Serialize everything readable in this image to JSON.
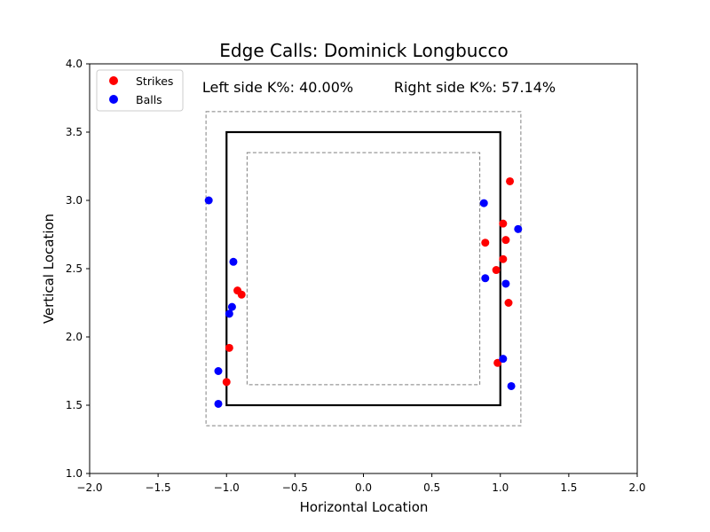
{
  "chart_data": {
    "type": "scatter",
    "title": "Edge Calls: Dominick Longbucco",
    "xlabel": "Horizontal Location",
    "ylabel": "Vertical Location",
    "xlim": [
      -2.0,
      2.0
    ],
    "ylim": [
      1.0,
      4.0
    ],
    "xticks": [
      -2.0,
      -1.5,
      -1.0,
      -0.5,
      0.0,
      0.5,
      1.0,
      1.5,
      2.0
    ],
    "xtick_labels": [
      "−2.0",
      "−1.5",
      "−1.0",
      "−0.5",
      "0.0",
      "0.5",
      "1.0",
      "1.5",
      "2.0"
    ],
    "yticks": [
      1.0,
      1.5,
      2.0,
      2.5,
      3.0,
      3.5,
      4.0
    ],
    "ytick_labels": [
      "1.0",
      "1.5",
      "2.0",
      "2.5",
      "3.0",
      "3.5",
      "4.0"
    ],
    "grid": false,
    "legend_position": "top-left",
    "annotations": {
      "left": "Left side K%: 40.00%",
      "right": "Right side K%: 57.14%"
    },
    "zones": {
      "strike_zone": {
        "x": [
          -1.0,
          1.0
        ],
        "y": [
          1.5,
          3.5
        ]
      },
      "outer_edge": {
        "x": [
          -1.15,
          1.15
        ],
        "y": [
          1.35,
          3.65
        ]
      },
      "inner_edge": {
        "x": [
          -0.85,
          0.85
        ],
        "y": [
          1.65,
          3.35
        ]
      }
    },
    "series": [
      {
        "name": "Strikes",
        "color": "#ff0000",
        "points": [
          {
            "x": -0.92,
            "y": 2.34
          },
          {
            "x": -0.89,
            "y": 2.31
          },
          {
            "x": -0.98,
            "y": 1.92
          },
          {
            "x": -1.0,
            "y": 1.67
          },
          {
            "x": 1.07,
            "y": 3.14
          },
          {
            "x": 1.02,
            "y": 2.83
          },
          {
            "x": 1.04,
            "y": 2.71
          },
          {
            "x": 0.89,
            "y": 2.69
          },
          {
            "x": 1.02,
            "y": 2.57
          },
          {
            "x": 0.97,
            "y": 2.49
          },
          {
            "x": 1.06,
            "y": 2.25
          },
          {
            "x": 0.98,
            "y": 1.81
          }
        ]
      },
      {
        "name": "Balls",
        "color": "#0000ff",
        "points": [
          {
            "x": -1.13,
            "y": 3.0
          },
          {
            "x": -0.95,
            "y": 2.55
          },
          {
            "x": -0.96,
            "y": 2.22
          },
          {
            "x": -0.98,
            "y": 2.17
          },
          {
            "x": -1.06,
            "y": 1.75
          },
          {
            "x": -1.06,
            "y": 1.51
          },
          {
            "x": 0.88,
            "y": 2.98
          },
          {
            "x": 1.13,
            "y": 2.79
          },
          {
            "x": 0.89,
            "y": 2.43
          },
          {
            "x": 1.04,
            "y": 2.39
          },
          {
            "x": 1.02,
            "y": 1.84
          },
          {
            "x": 1.08,
            "y": 1.64
          }
        ]
      }
    ]
  }
}
